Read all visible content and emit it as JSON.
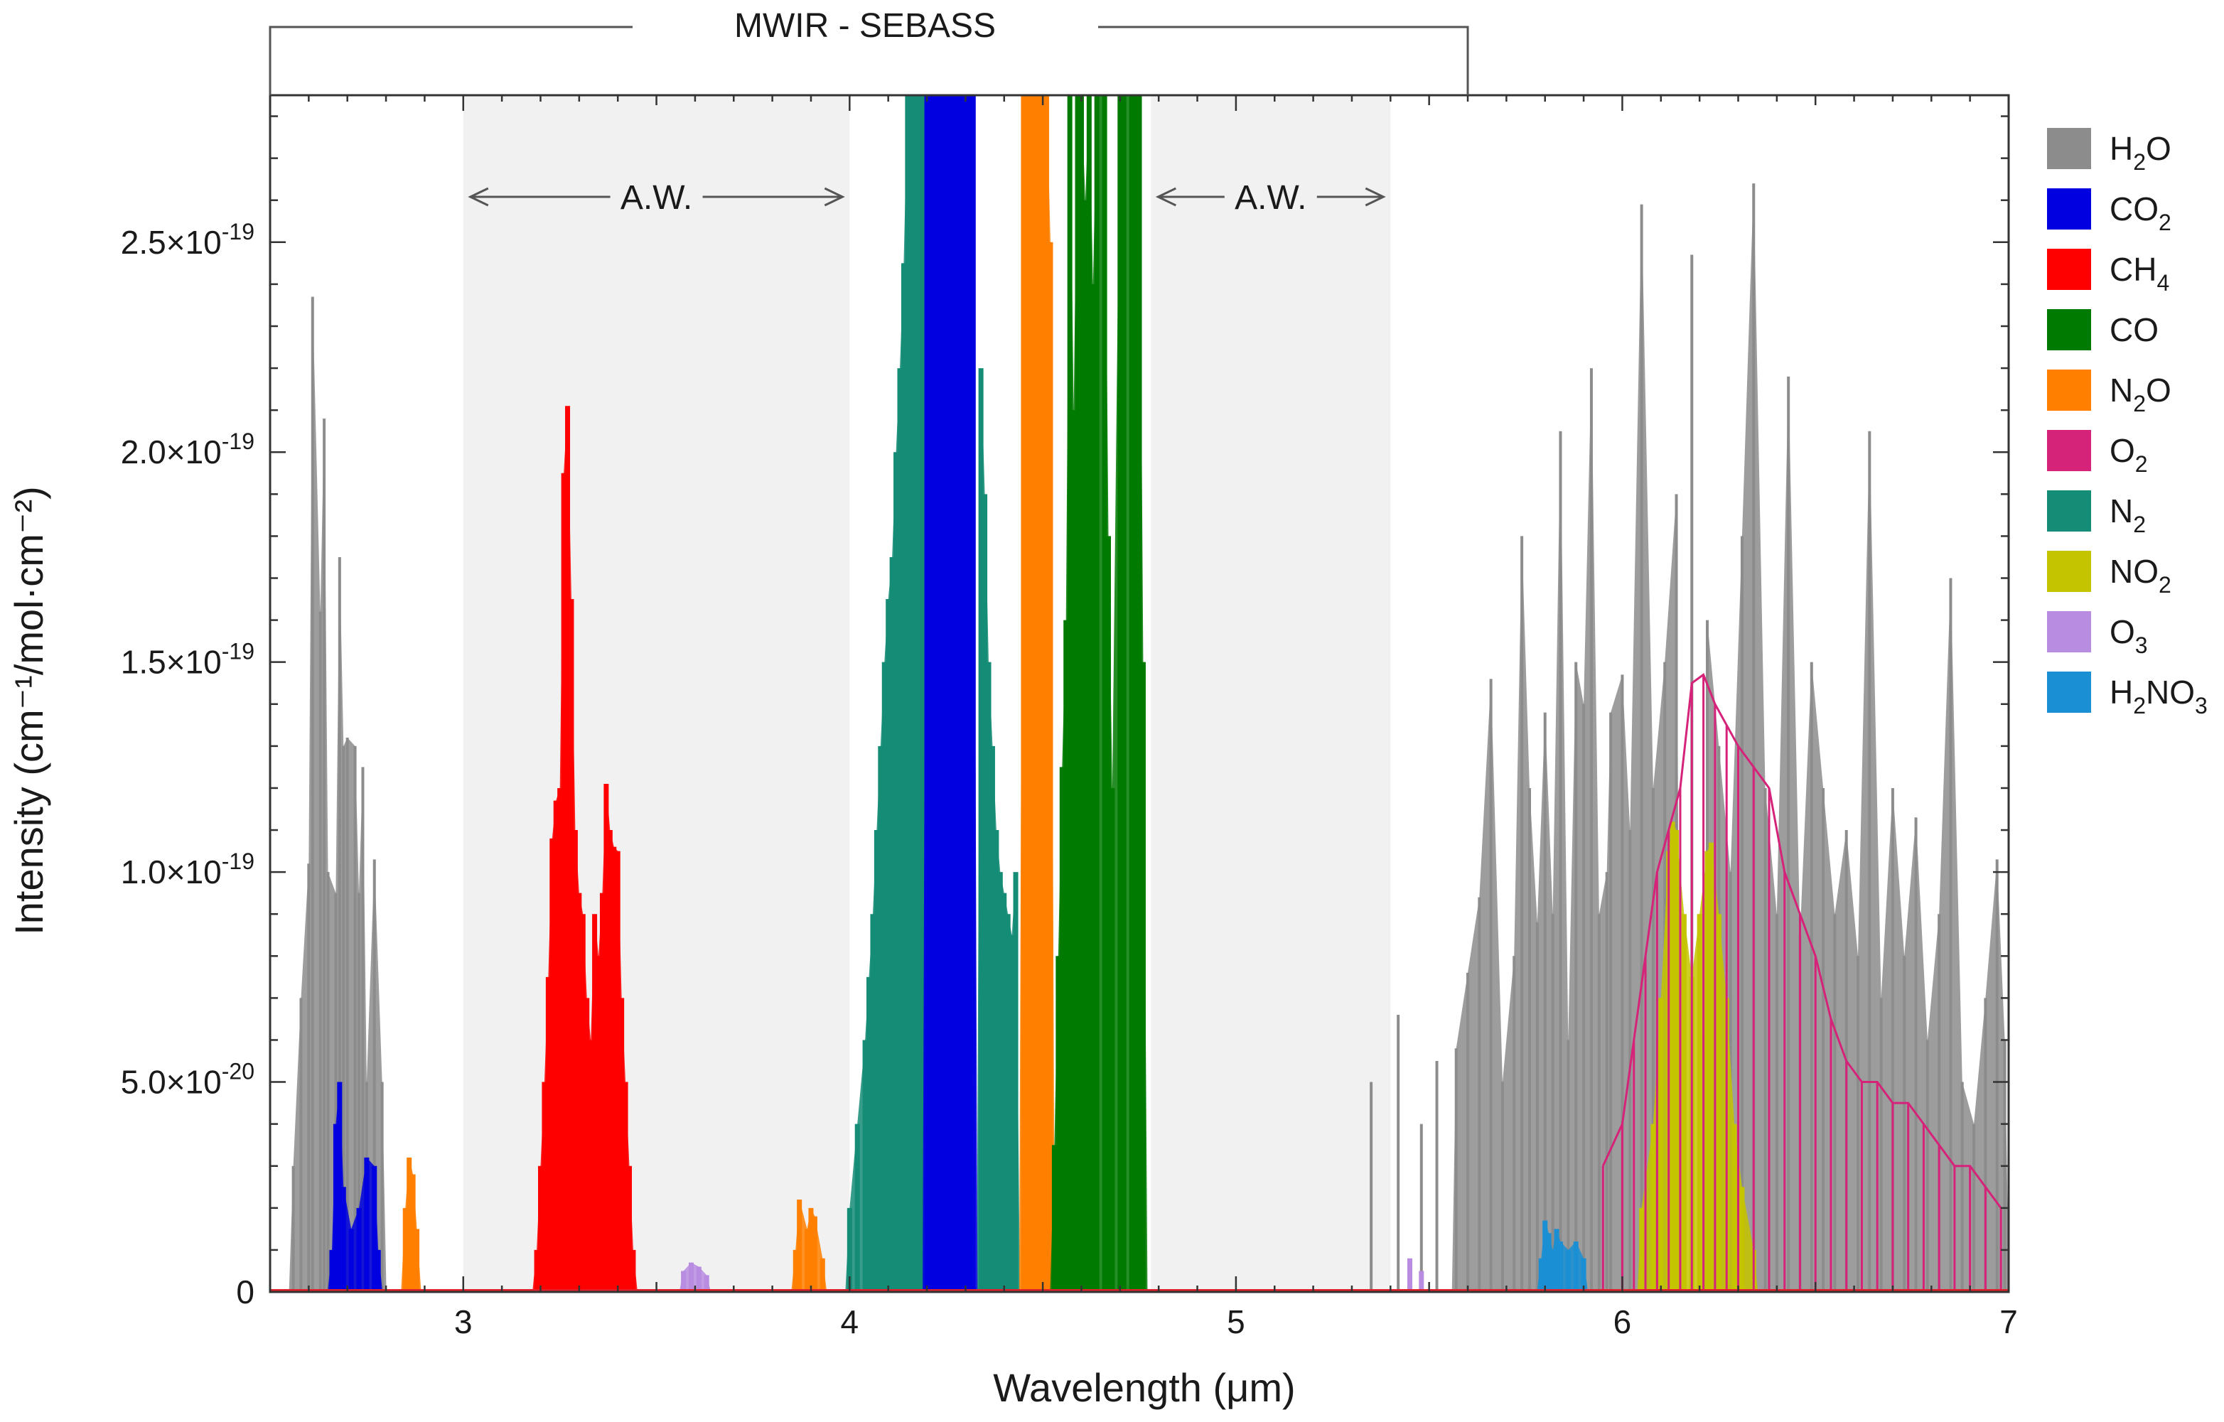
{
  "chart_data": {
    "type": "line",
    "title": "",
    "xlabel": "Wavelength (μm)",
    "ylabel": "Intensity (cm⁻¹/mol·cm⁻²)",
    "xlim": [
      2.5,
      7
    ],
    "ylim": [
      0,
      2.85e-19
    ],
    "grid": false,
    "legend_position": "right",
    "x_ticks": [
      {
        "value": 3,
        "label": "3"
      },
      {
        "value": 4,
        "label": "4"
      },
      {
        "value": 5,
        "label": "5"
      },
      {
        "value": 6,
        "label": "6"
      },
      {
        "value": 7,
        "label": "7"
      }
    ],
    "y_ticks": [
      {
        "value": 0,
        "label": "0"
      },
      {
        "value": 5e-20,
        "label": "5.0×10",
        "exp": "-20"
      },
      {
        "value": 1e-19,
        "label": "1.0×10",
        "exp": "-19"
      },
      {
        "value": 1.5e-19,
        "label": "1.5×10",
        "exp": "-19"
      },
      {
        "value": 2e-19,
        "label": "2.0×10",
        "exp": "-19"
      },
      {
        "value": 2.5e-19,
        "label": "2.5×10",
        "exp": "-19"
      }
    ],
    "bracket": {
      "label": "MWIR - SEBASS",
      "x_range": [
        2.5,
        5.6
      ]
    },
    "shaded_regions": [
      {
        "label": "A.W.",
        "x_range": [
          3.0,
          4.0
        ],
        "color": "#f1f1f1"
      },
      {
        "label": "A.W.",
        "x_range": [
          4.78,
          5.4
        ],
        "color": "#f1f1f1"
      }
    ],
    "series": [
      {
        "name": "H2O",
        "base": "H",
        "sub": "2",
        "tail": "O",
        "color": "#8c8c8c",
        "style": "filled",
        "lines": [
          [
            2.56,
            0.3
          ],
          [
            2.58,
            0.7
          ],
          [
            2.6,
            1.02
          ],
          [
            2.61,
            2.37
          ],
          [
            2.63,
            1.62
          ],
          [
            2.64,
            2.08
          ],
          [
            2.65,
            1.0
          ],
          [
            2.67,
            0.95
          ],
          [
            2.68,
            1.75
          ],
          [
            2.69,
            1.3
          ],
          [
            2.7,
            1.32
          ],
          [
            2.72,
            1.3
          ],
          [
            2.73,
            0.95
          ],
          [
            2.74,
            1.25
          ],
          [
            2.75,
            0.5
          ],
          [
            2.77,
            1.03
          ],
          [
            2.79,
            0.5
          ],
          [
            5.35,
            0.5
          ],
          [
            5.42,
            0.66
          ],
          [
            5.48,
            0.4
          ],
          [
            5.52,
            0.55
          ],
          [
            5.57,
            0.58
          ],
          [
            5.6,
            0.76
          ],
          [
            5.63,
            0.94
          ],
          [
            5.66,
            1.46
          ],
          [
            5.69,
            0.5
          ],
          [
            5.72,
            0.8
          ],
          [
            5.74,
            1.8
          ],
          [
            5.76,
            1.2
          ],
          [
            5.78,
            0.88
          ],
          [
            5.8,
            1.38
          ],
          [
            5.82,
            0.9
          ],
          [
            5.84,
            2.05
          ],
          [
            5.86,
            0.6
          ],
          [
            5.88,
            1.5
          ],
          [
            5.9,
            1.4
          ],
          [
            5.92,
            2.2
          ],
          [
            5.94,
            0.9
          ],
          [
            5.96,
            1.0
          ],
          [
            5.97,
            1.38
          ],
          [
            6.0,
            1.47
          ],
          [
            6.02,
            1.1
          ],
          [
            6.05,
            2.59
          ],
          [
            6.08,
            1.2
          ],
          [
            6.11,
            1.5
          ],
          [
            6.14,
            1.9
          ],
          [
            6.18,
            2.47
          ],
          [
            6.22,
            1.6
          ],
          [
            6.25,
            1.3
          ],
          [
            6.28,
            1.0
          ],
          [
            6.31,
            1.8
          ],
          [
            6.34,
            2.64
          ],
          [
            6.37,
            1.2
          ],
          [
            6.4,
            0.9
          ],
          [
            6.43,
            2.18
          ],
          [
            6.46,
            0.85
          ],
          [
            6.49,
            1.5
          ],
          [
            6.52,
            1.2
          ],
          [
            6.55,
            0.9
          ],
          [
            6.58,
            1.1
          ],
          [
            6.61,
            0.8
          ],
          [
            6.64,
            2.05
          ],
          [
            6.67,
            0.7
          ],
          [
            6.7,
            1.2
          ],
          [
            6.73,
            0.8
          ],
          [
            6.76,
            1.13
          ],
          [
            6.79,
            0.6
          ],
          [
            6.82,
            0.9
          ],
          [
            6.85,
            1.7
          ],
          [
            6.88,
            0.5
          ],
          [
            6.91,
            0.4
          ],
          [
            6.94,
            0.7
          ],
          [
            6.97,
            1.03
          ],
          [
            6.99,
            0.6
          ]
        ]
      },
      {
        "name": "CO2",
        "base": "CO",
        "sub": "2",
        "tail": "",
        "color": "#0000e0",
        "style": "filled",
        "lines": [
          [
            2.66,
            0.1
          ],
          [
            2.67,
            0.4
          ],
          [
            2.68,
            0.5
          ],
          [
            2.69,
            0.25
          ],
          [
            2.71,
            0.15
          ],
          [
            2.73,
            0.2
          ],
          [
            2.75,
            0.32
          ],
          [
            2.77,
            0.3
          ],
          [
            2.78,
            0.1
          ],
          [
            4.2,
            2.85
          ],
          [
            4.21,
            2.85
          ],
          [
            4.22,
            2.85
          ],
          [
            4.23,
            2.85
          ],
          [
            4.24,
            2.85
          ],
          [
            4.25,
            2.85
          ],
          [
            4.26,
            2.85
          ],
          [
            4.27,
            2.85
          ],
          [
            4.28,
            2.85
          ],
          [
            4.29,
            2.85
          ],
          [
            4.3,
            2.85
          ],
          [
            4.31,
            2.85
          ],
          [
            4.32,
            2.85
          ]
        ]
      },
      {
        "name": "CH4",
        "base": "CH",
        "sub": "4",
        "tail": "",
        "color": "#ff0000",
        "style": "filled",
        "lines": [
          [
            3.19,
            0.1
          ],
          [
            3.2,
            0.3
          ],
          [
            3.21,
            0.5
          ],
          [
            3.22,
            0.75
          ],
          [
            3.23,
            1.08
          ],
          [
            3.24,
            1.17
          ],
          [
            3.25,
            1.2
          ],
          [
            3.26,
            1.95
          ],
          [
            3.27,
            2.11
          ],
          [
            3.28,
            1.65
          ],
          [
            3.29,
            1.1
          ],
          [
            3.3,
            0.95
          ],
          [
            3.31,
            0.9
          ],
          [
            3.32,
            0.7
          ],
          [
            3.33,
            0.6
          ],
          [
            3.34,
            0.9
          ],
          [
            3.35,
            0.8
          ],
          [
            3.36,
            0.95
          ],
          [
            3.37,
            1.21
          ],
          [
            3.38,
            1.1
          ],
          [
            3.39,
            1.06
          ],
          [
            3.4,
            1.05
          ],
          [
            3.41,
            0.7
          ],
          [
            3.42,
            0.5
          ],
          [
            3.43,
            0.3
          ],
          [
            3.44,
            0.1
          ]
        ]
      },
      {
        "name": "CO",
        "base": "CO",
        "sub": "",
        "tail": "",
        "color": "#007a00",
        "style": "filled",
        "lines": [
          [
            4.53,
            0.35
          ],
          [
            4.54,
            0.8
          ],
          [
            4.55,
            1.25
          ],
          [
            4.56,
            1.6
          ],
          [
            4.57,
            2.85
          ],
          [
            4.58,
            2.1
          ],
          [
            4.59,
            2.85
          ],
          [
            4.6,
            2.85
          ],
          [
            4.61,
            2.6
          ],
          [
            4.62,
            2.85
          ],
          [
            4.63,
            2.4
          ],
          [
            4.64,
            2.85
          ],
          [
            4.66,
            2.85
          ],
          [
            4.67,
            1.8
          ],
          [
            4.68,
            1.2
          ],
          [
            4.7,
            2.85
          ],
          [
            4.71,
            2.85
          ],
          [
            4.73,
            2.85
          ],
          [
            4.74,
            2.85
          ],
          [
            4.75,
            2.85
          ],
          [
            4.76,
            1.5
          ]
        ]
      },
      {
        "name": "N2O",
        "base": "N",
        "sub": "2",
        "tail": "O",
        "color": "#ff8000",
        "style": "filled",
        "lines": [
          [
            2.85,
            0.2
          ],
          [
            2.86,
            0.32
          ],
          [
            2.87,
            0.28
          ],
          [
            2.88,
            0.15
          ],
          [
            3.86,
            0.1
          ],
          [
            3.87,
            0.22
          ],
          [
            3.89,
            0.15
          ],
          [
            3.9,
            0.2
          ],
          [
            3.91,
            0.18
          ],
          [
            3.93,
            0.08
          ],
          [
            4.45,
            2.85
          ],
          [
            4.46,
            2.85
          ],
          [
            4.47,
            2.85
          ],
          [
            4.48,
            2.85
          ],
          [
            4.49,
            2.85
          ],
          [
            4.5,
            2.85
          ],
          [
            4.51,
            2.85
          ],
          [
            4.52,
            2.5
          ]
        ]
      },
      {
        "name": "O2",
        "base": "O",
        "sub": "2",
        "tail": "",
        "color": "#d6237a",
        "style": "line",
        "lines": [
          [
            5.95,
            0.3
          ],
          [
            6.0,
            0.4
          ],
          [
            6.03,
            0.6
          ],
          [
            6.06,
            0.8
          ],
          [
            6.09,
            1.0
          ],
          [
            6.12,
            1.1
          ],
          [
            6.15,
            1.2
          ],
          [
            6.18,
            1.45
          ],
          [
            6.21,
            1.47
          ],
          [
            6.24,
            1.4
          ],
          [
            6.27,
            1.35
          ],
          [
            6.3,
            1.3
          ],
          [
            6.34,
            1.25
          ],
          [
            6.38,
            1.2
          ],
          [
            6.42,
            1.0
          ],
          [
            6.46,
            0.9
          ],
          [
            6.5,
            0.8
          ],
          [
            6.54,
            0.65
          ],
          [
            6.58,
            0.55
          ],
          [
            6.62,
            0.5
          ],
          [
            6.66,
            0.5
          ],
          [
            6.7,
            0.45
          ],
          [
            6.74,
            0.45
          ],
          [
            6.78,
            0.4
          ],
          [
            6.82,
            0.35
          ],
          [
            6.86,
            0.3
          ],
          [
            6.9,
            0.3
          ],
          [
            6.94,
            0.25
          ],
          [
            6.98,
            0.2
          ]
        ]
      },
      {
        "name": "N2",
        "base": "N",
        "sub": "2",
        "tail": "",
        "color": "#148c76",
        "style": "filled",
        "lines": [
          [
            4.0,
            0.2
          ],
          [
            4.02,
            0.4
          ],
          [
            4.04,
            0.6
          ],
          [
            4.05,
            0.75
          ],
          [
            4.06,
            0.9
          ],
          [
            4.07,
            1.1
          ],
          [
            4.08,
            1.3
          ],
          [
            4.09,
            1.5
          ],
          [
            4.1,
            1.65
          ],
          [
            4.11,
            1.75
          ],
          [
            4.12,
            2.0
          ],
          [
            4.13,
            2.2
          ],
          [
            4.14,
            2.45
          ],
          [
            4.15,
            2.85
          ],
          [
            4.16,
            2.85
          ],
          [
            4.17,
            2.85
          ],
          [
            4.18,
            2.85
          ],
          [
            4.19,
            2.85
          ],
          [
            4.34,
            2.2
          ],
          [
            4.35,
            1.9
          ],
          [
            4.36,
            1.5
          ],
          [
            4.37,
            1.3
          ],
          [
            4.38,
            1.1
          ],
          [
            4.39,
            1.0
          ],
          [
            4.4,
            0.95
          ],
          [
            4.41,
            0.9
          ],
          [
            4.42,
            0.85
          ],
          [
            4.43,
            1.0
          ]
        ]
      },
      {
        "name": "NO2",
        "base": "NO",
        "sub": "2",
        "tail": "",
        "color": "#c4c400",
        "style": "filled",
        "lines": [
          [
            6.05,
            0.2
          ],
          [
            6.08,
            0.4
          ],
          [
            6.1,
            0.7
          ],
          [
            6.12,
            1.05
          ],
          [
            6.13,
            1.12
          ],
          [
            6.14,
            1.1
          ],
          [
            6.16,
            0.9
          ],
          [
            6.18,
            0.75
          ],
          [
            6.2,
            0.9
          ],
          [
            6.22,
            1.05
          ],
          [
            6.23,
            1.07
          ],
          [
            6.25,
            0.9
          ],
          [
            6.27,
            0.7
          ],
          [
            6.29,
            0.4
          ],
          [
            6.31,
            0.25
          ],
          [
            6.34,
            0.1
          ]
        ]
      },
      {
        "name": "O3",
        "base": "O",
        "sub": "3",
        "tail": "",
        "color": "#b88ce0",
        "style": "filled",
        "lines": [
          [
            3.57,
            0.05
          ],
          [
            3.59,
            0.07
          ],
          [
            3.61,
            0.06
          ],
          [
            3.63,
            0.04
          ],
          [
            5.45,
            0.08
          ],
          [
            5.48,
            0.05
          ]
        ]
      },
      {
        "name": "H2NO3",
        "base": "H",
        "sub": "2",
        "tail": "NO",
        "sub2": "3",
        "color": "#1a8fd4",
        "style": "filled",
        "lines": [
          [
            5.79,
            0.08
          ],
          [
            5.8,
            0.17
          ],
          [
            5.81,
            0.14
          ],
          [
            5.82,
            0.1
          ],
          [
            5.83,
            0.15
          ],
          [
            5.84,
            0.12
          ],
          [
            5.86,
            0.1
          ],
          [
            5.88,
            0.12
          ],
          [
            5.9,
            0.08
          ]
        ]
      }
    ]
  }
}
